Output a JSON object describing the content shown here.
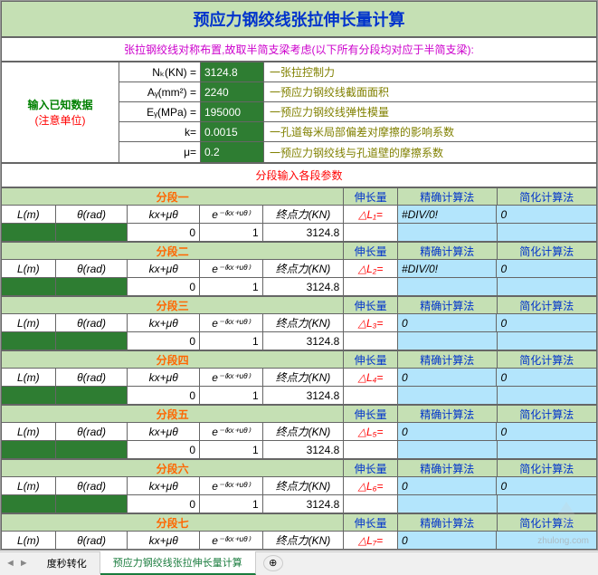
{
  "title": "预应力钢绞线张拉伸长量计算",
  "subtitle": "张拉钢绞线对称布置,故取半简支梁考虑(以下所有分段均对应于半简支梁):",
  "input_label": {
    "line1": "输入已知数据",
    "line2": "(注意单位)"
  },
  "inputs": [
    {
      "key": "Nₖ(KN) =",
      "val": "3124.8",
      "desc": "一张拉控制力"
    },
    {
      "key": "Aᵧ(mm²) =",
      "val": "2240",
      "desc": "一预应力钢绞线截面面积"
    },
    {
      "key": "Eᵧ(MPa) =",
      "val": "195000",
      "desc": "一预应力钢绞线弹性模量"
    },
    {
      "key": "k=",
      "val": "0.0015",
      "desc": "一孔道每米局部偏差对摩擦的影响系数"
    },
    {
      "key": "μ=",
      "val": "0.2",
      "desc": "一预应力钢绞线与孔道壁的摩擦系数"
    }
  ],
  "param_header": "分段输入各段参数",
  "col_headers": {
    "c1": "L(m)",
    "c2": "θ(rad)",
    "c3": "kx+μθ",
    "c4": "e⁻⁽ᵏˣ⁺ᵘᶿ⁾",
    "c5": "终点力(KN)",
    "h1": "伸长量",
    "h2": "精确计算法",
    "h3": "简化计算法"
  },
  "segments": [
    {
      "name": "分段一",
      "delta": "△L₁=",
      "v3": "0",
      "v4": "1",
      "v5": "3124.8",
      "precise": "#DIV/0!",
      "simple": "0"
    },
    {
      "name": "分段二",
      "delta": "△L₂=",
      "v3": "0",
      "v4": "1",
      "v5": "3124.8",
      "precise": "#DIV/0!",
      "simple": "0"
    },
    {
      "name": "分段三",
      "delta": "△L₃=",
      "v3": "0",
      "v4": "1",
      "v5": "3124.8",
      "precise": "0",
      "simple": "0"
    },
    {
      "name": "分段四",
      "delta": "△L₄=",
      "v3": "0",
      "v4": "1",
      "v5": "3124.8",
      "precise": "0",
      "simple": "0"
    },
    {
      "name": "分段五",
      "delta": "△L₅=",
      "v3": "0",
      "v4": "1",
      "v5": "3124.8",
      "precise": "0",
      "simple": "0"
    },
    {
      "name": "分段六",
      "delta": "△L₆=",
      "v3": "0",
      "v4": "1",
      "v5": "3124.8",
      "precise": "0",
      "simple": "0"
    },
    {
      "name": "分段七",
      "delta": "△L₇=",
      "v3": "",
      "v4": "",
      "v5": "",
      "precise": "0",
      "simple": ""
    }
  ],
  "tabs": {
    "t1": "度秒转化",
    "t2": "预应力钢绞线张拉伸长量计算"
  },
  "watermark": "zhulong.com"
}
